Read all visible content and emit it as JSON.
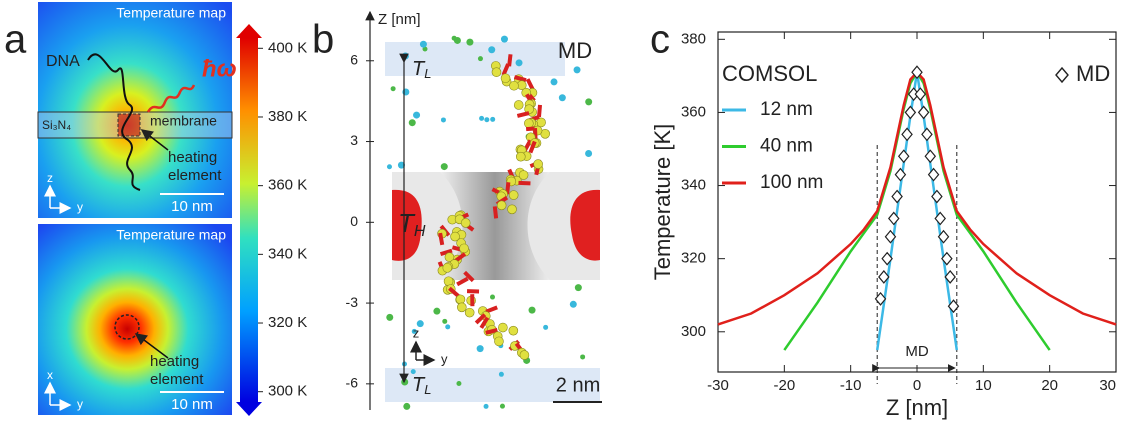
{
  "panel_a": {
    "letter": "a",
    "top_title": "Temperature map",
    "bottom_title": "Temperature map",
    "dna": "DNA",
    "hbar_omega": "ħω",
    "si3n4": "Si₃N₄",
    "membrane": "membrane",
    "heating_top_1": "heating",
    "heating_top_2": "element",
    "heating_bottom_1": "heating",
    "heating_bottom_2": "element",
    "scale_top": "10 nm",
    "scale_bottom": "10 nm",
    "axis_top_vertical": "z",
    "axis_top_horizontal": "y",
    "axis_bottom_vertical": "x",
    "axis_bottom_horizontal": "y",
    "colorbar": {
      "lim": [
        297,
        403
      ],
      "ticks": [
        {
          "value": 400,
          "label": "400 K"
        },
        {
          "value": 380,
          "label": "380 K"
        },
        {
          "value": 360,
          "label": "360 K"
        },
        {
          "value": 340,
          "label": "340 K"
        },
        {
          "value": 320,
          "label": "320 K"
        },
        {
          "value": 300,
          "label": "300 K"
        }
      ]
    }
  },
  "panel_b": {
    "letter": "b",
    "axis_label": "Z  [nm]",
    "zlim": [
      -6.6,
      7.7
    ],
    "zticks": [
      6,
      3,
      0,
      -3,
      -6
    ],
    "md": "MD",
    "t_main_top": "T",
    "t_sub_top": "L",
    "t_main_bottom": "T",
    "t_sub_bottom": "L",
    "th_main": "T",
    "th_sub": "H",
    "scale": "2 nm",
    "axis_vertical": "z",
    "axis_horizontal": "y"
  },
  "chart_data": {
    "type": "line",
    "letter": "c",
    "ylabel": "Temperature  [K]",
    "xlabel": "Z  [nm]",
    "legend_title": "COMSOL",
    "annotation": "MD",
    "annotation_range": [
      -6,
      6
    ],
    "xlim": [
      -30,
      30
    ],
    "xticks": [
      -30,
      -20,
      -10,
      0,
      10,
      20,
      30
    ],
    "ylim": [
      289,
      382
    ],
    "yticks": [
      300,
      320,
      340,
      360,
      380
    ],
    "x": [
      -30,
      -25,
      -20,
      -15,
      -10,
      -8,
      -6,
      -4,
      -2,
      -1,
      0,
      1,
      2,
      4,
      6,
      8,
      10,
      15,
      20,
      25,
      30
    ],
    "series": [
      {
        "name": "12 nm",
        "color": "#3cb9e6",
        "values": [
          null,
          null,
          null,
          null,
          null,
          null,
          295,
          320,
          346,
          359,
          371,
          359,
          346,
          320,
          295,
          null,
          null,
          null,
          null,
          null,
          null
        ]
      },
      {
        "name": "40 nm",
        "color": "#2ecc2e",
        "values": [
          null,
          null,
          295,
          308,
          322,
          327,
          332,
          344,
          361,
          368,
          371,
          368,
          361,
          344,
          332,
          327,
          322,
          308,
          295,
          null,
          null
        ]
      },
      {
        "name": "100 nm",
        "color": "#e0201b",
        "values": [
          302,
          305,
          310,
          316,
          324,
          328,
          333,
          345,
          362,
          369,
          371,
          369,
          362,
          345,
          333,
          328,
          324,
          316,
          310,
          305,
          302
        ]
      }
    ],
    "scatter": {
      "name": "MD",
      "x": [
        -5.5,
        -5,
        -4.5,
        -4,
        -3.5,
        -3,
        -2.5,
        -2,
        -1.5,
        -1,
        -0.5,
        0,
        0.5,
        1,
        1.5,
        2,
        2.5,
        3,
        3.5,
        4,
        4.5,
        5,
        5.5
      ],
      "values": [
        309,
        315,
        320,
        326,
        331,
        337,
        343,
        348,
        354,
        360,
        365,
        371,
        365,
        360,
        354,
        348,
        343,
        337,
        331,
        326,
        320,
        315,
        307
      ]
    }
  }
}
